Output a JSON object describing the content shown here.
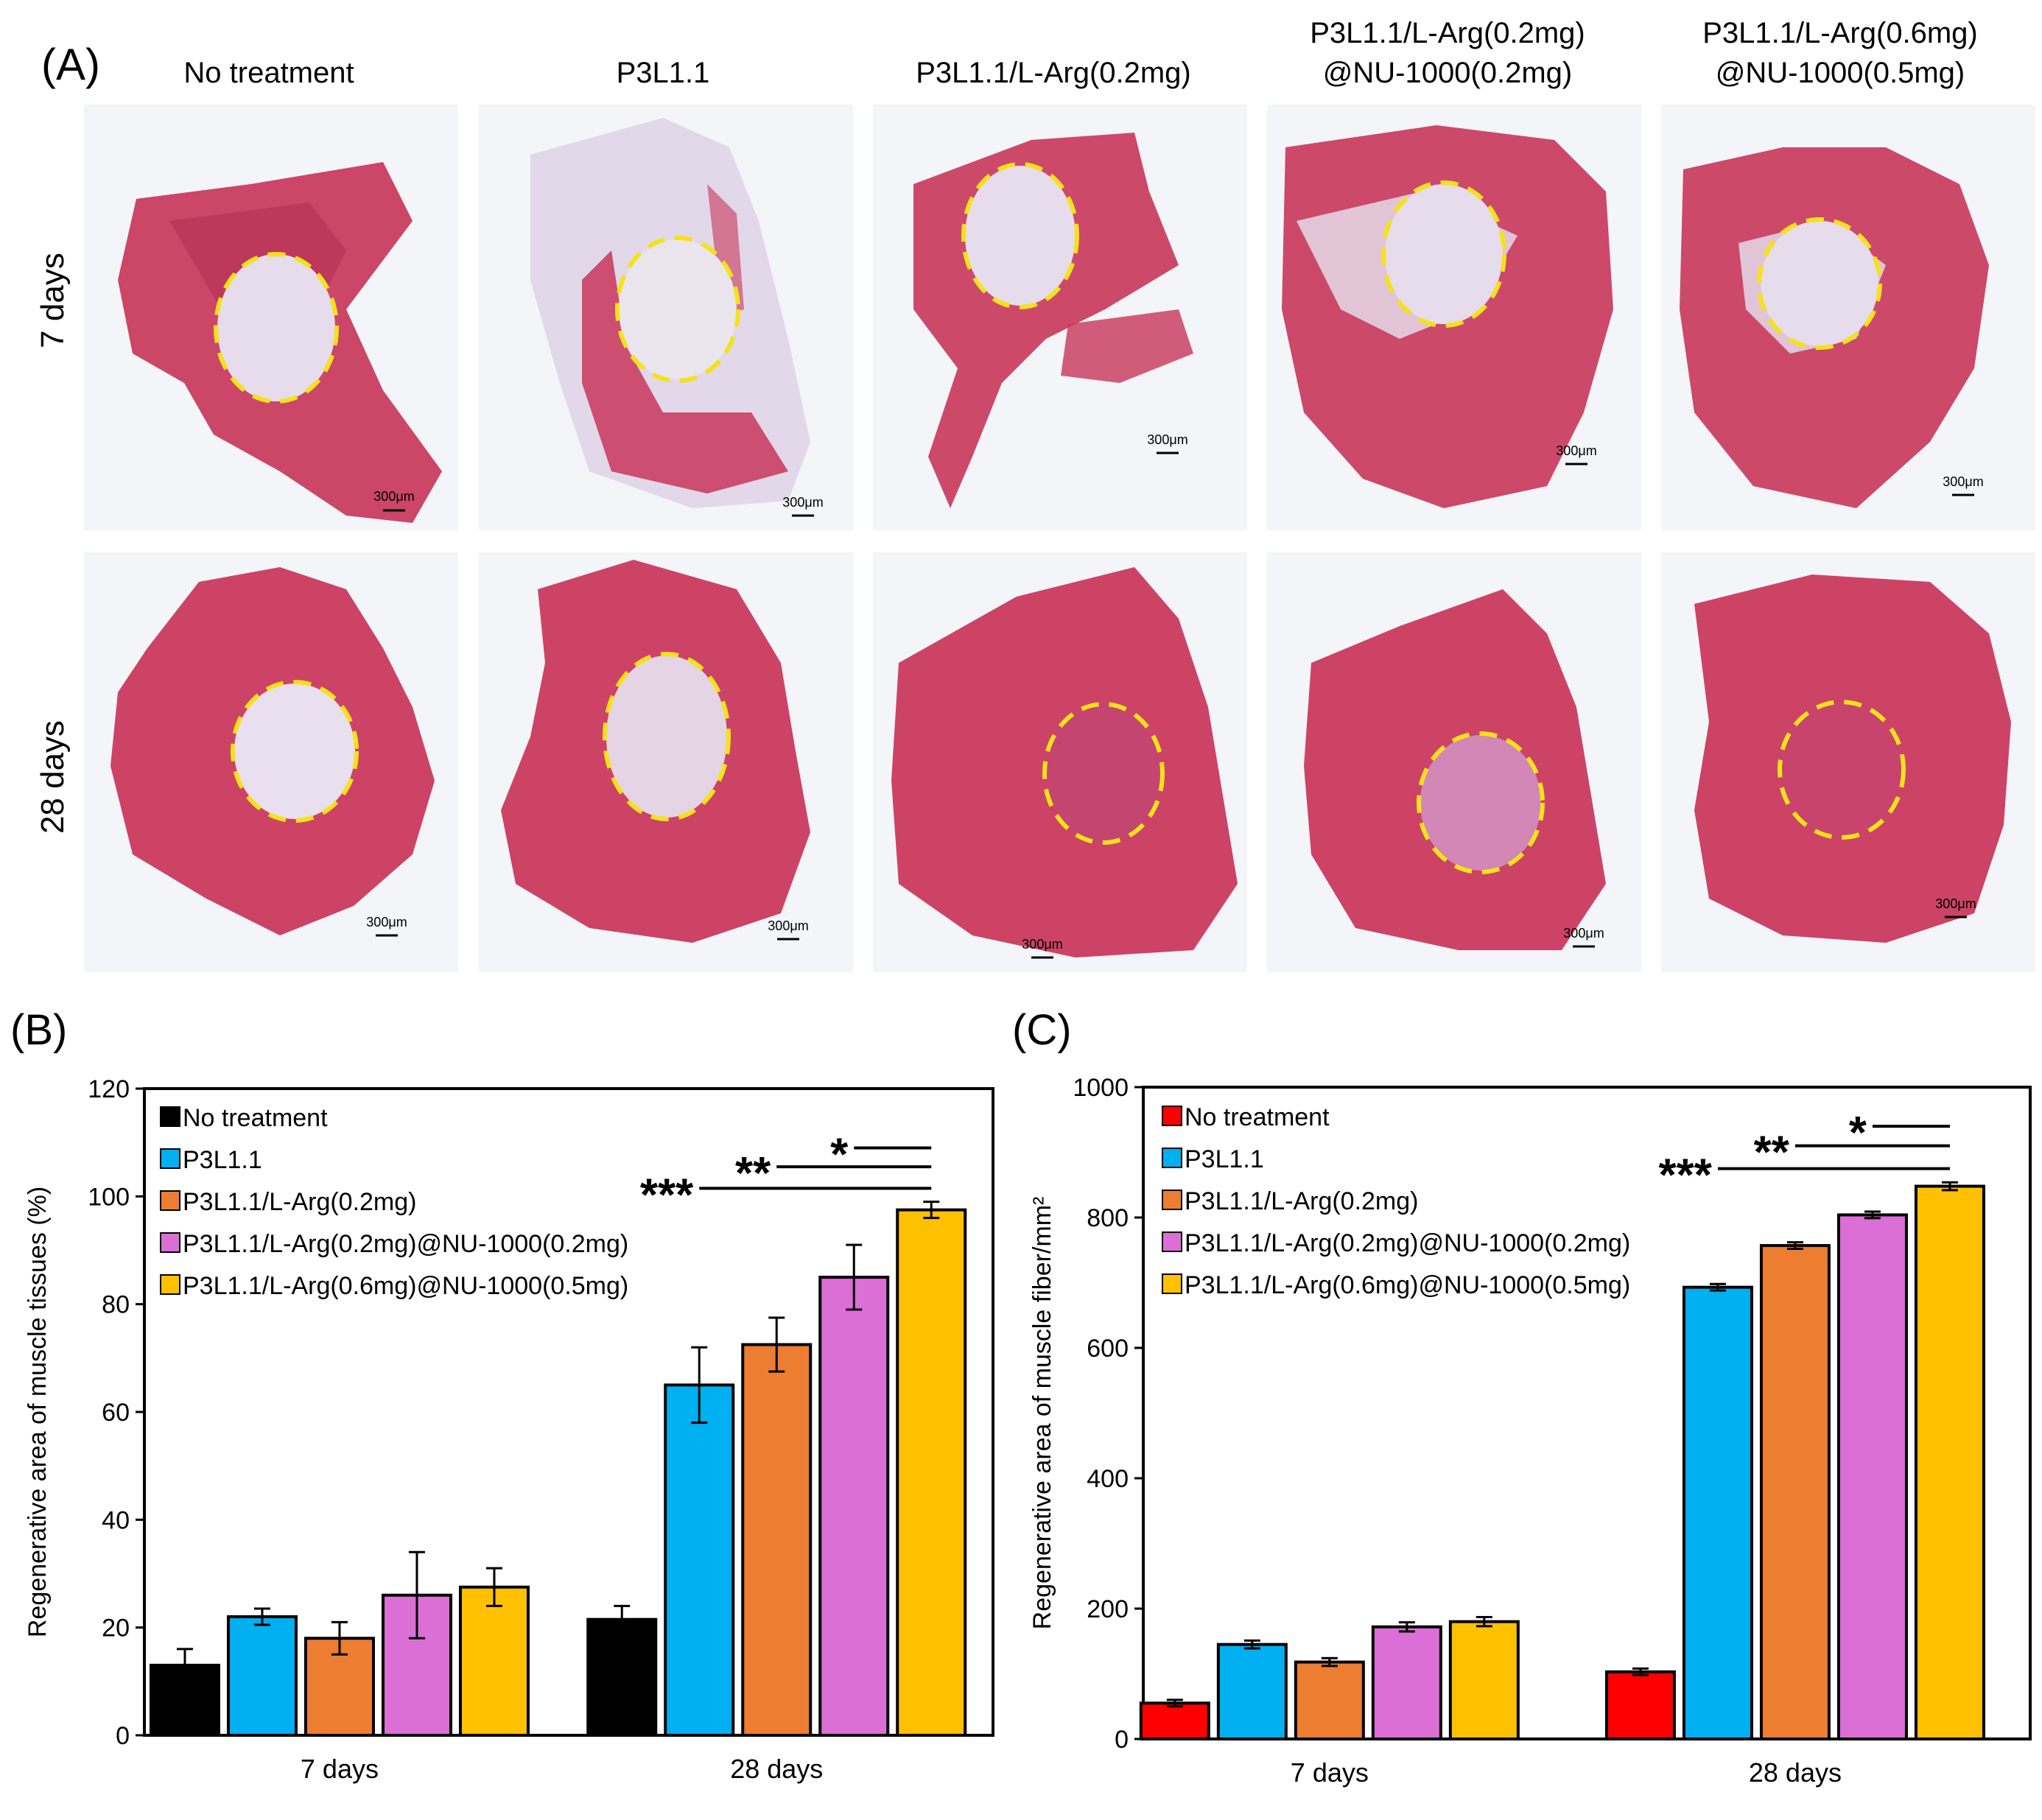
{
  "panel_a": {
    "label": "(A)",
    "columns": [
      {
        "lines": [
          "No treatment"
        ]
      },
      {
        "lines": [
          "P3L1.1"
        ]
      },
      {
        "lines": [
          "P3L1.1/L-Arg(0.2mg)"
        ]
      },
      {
        "lines": [
          "P3L1.1/L-Arg(0.2mg)",
          "@NU-1000(0.2mg)"
        ]
      },
      {
        "lines": [
          "P3L1.1/L-Arg(0.6mg)",
          "@NU-1000(0.5mg)"
        ]
      }
    ],
    "rows": [
      "7 days",
      "28 days"
    ],
    "scale_bar": "300μm",
    "colors": {
      "muscle": "#c8365a",
      "muscle_dark": "#9c1e3e",
      "scaffold": "#e6dceb",
      "ring": "#f5e21a"
    }
  },
  "chart_data": [
    {
      "id": "B",
      "panel_label": "(B)",
      "type": "bar",
      "categories": [
        "7 days",
        "28 days"
      ],
      "ylabel": "Regenerative area of muscle tissues (%)",
      "xlabel": "",
      "ylim": [
        0,
        120
      ],
      "yticks": [
        0,
        20,
        40,
        60,
        80,
        100,
        120
      ],
      "grid": false,
      "legend": "top-left",
      "series": [
        {
          "name": "No treatment",
          "color": "#000000",
          "values": [
            13,
            21.5
          ],
          "errors": [
            3,
            2.5
          ]
        },
        {
          "name": "P3L1.1",
          "color": "#00b0f0",
          "values": [
            22,
            65
          ],
          "errors": [
            1.5,
            7
          ]
        },
        {
          "name": "P3L1.1/L-Arg(0.2mg)",
          "color": "#ed7d31",
          "values": [
            18,
            72.5
          ],
          "errors": [
            3,
            5
          ]
        },
        {
          "name": "P3L1.1/L-Arg(0.2mg)@NU-1000(0.2mg)",
          "color": "#db6fd6",
          "values": [
            26,
            85
          ],
          "errors": [
            8,
            6
          ]
        },
        {
          "name": "P3L1.1/L-Arg(0.6mg)@NU-1000(0.5mg)",
          "color": "#ffc000",
          "values": [
            27.5,
            97.5
          ],
          "errors": [
            3.5,
            1.5
          ]
        }
      ],
      "significance": [
        {
          "label": "*",
          "from_series": 3,
          "to_series": 4,
          "y": 109
        },
        {
          "label": "**",
          "from_series": 2,
          "to_series": 4,
          "y": 105.5
        },
        {
          "label": "***",
          "from_series": 1,
          "to_series": 4,
          "y": 101.5
        }
      ]
    },
    {
      "id": "C",
      "panel_label": "(C)",
      "type": "bar",
      "categories": [
        "7 days",
        "28 days"
      ],
      "ylabel": "Regenerative area of muscle fiber/mm²",
      "xlabel": "",
      "ylim": [
        0,
        1000
      ],
      "yticks": [
        0,
        200,
        400,
        600,
        800,
        1000
      ],
      "grid": false,
      "legend": "top-left",
      "series": [
        {
          "name": "No treatment",
          "color": "#ff0000",
          "values": [
            55,
            103
          ],
          "errors": [
            5,
            5
          ]
        },
        {
          "name": "P3L1.1",
          "color": "#00b0f0",
          "values": [
            145,
            693
          ],
          "errors": [
            6,
            5
          ]
        },
        {
          "name": "P3L1.1/L-Arg(0.2mg)",
          "color": "#ed7d31",
          "values": [
            118,
            757
          ],
          "errors": [
            6,
            5
          ]
        },
        {
          "name": "P3L1.1/L-Arg(0.2mg)@NU-1000(0.2mg)",
          "color": "#db6fd6",
          "values": [
            172,
            804
          ],
          "errors": [
            7,
            5
          ]
        },
        {
          "name": "P3L1.1/L-Arg(0.6mg)@NU-1000(0.5mg)",
          "color": "#ffc000",
          "values": [
            180,
            848
          ],
          "errors": [
            7,
            6
          ]
        }
      ],
      "significance": [
        {
          "label": "*",
          "from_series": 3,
          "to_series": 4,
          "y": 940
        },
        {
          "label": "**",
          "from_series": 2,
          "to_series": 4,
          "y": 910
        },
        {
          "label": "***",
          "from_series": 1,
          "to_series": 4,
          "y": 875
        }
      ]
    }
  ]
}
